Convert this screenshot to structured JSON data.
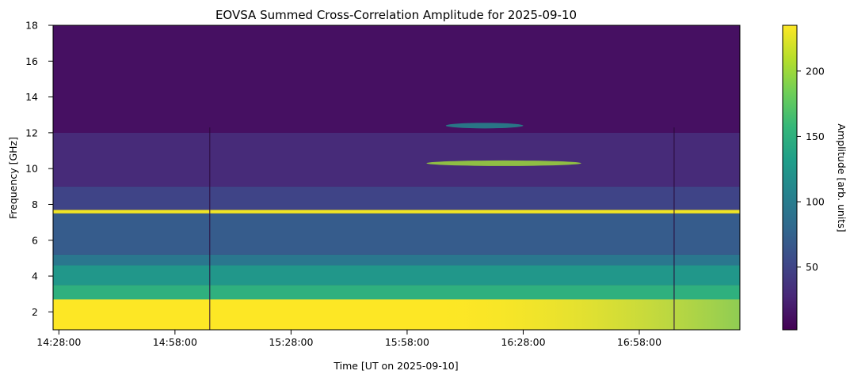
{
  "chart_data": {
    "type": "heatmap",
    "title": "EOVSA Summed Cross-Correlation Amplitude for 2025-09-10",
    "xlabel": "Time [UT on 2025-09-10]",
    "ylabel": "Frequency [GHz]",
    "colorbar_label": "Amplitude [arb. units]",
    "colormap": "viridis",
    "x_range": [
      "14:26:30",
      "17:24:00"
    ],
    "x_ticks": [
      "14:28:00",
      "14:58:00",
      "15:28:00",
      "15:58:00",
      "16:28:00",
      "16:58:00"
    ],
    "y_range": [
      1.0,
      18.0
    ],
    "y_ticks": [
      2,
      4,
      6,
      8,
      10,
      12,
      14,
      16,
      18
    ],
    "color_range": [
      2,
      235
    ],
    "colorbar_ticks": [
      50,
      100,
      150,
      200
    ],
    "grid": false,
    "gaps_ut": [
      "15:07:00",
      "17:07:00"
    ],
    "bands": [
      {
        "freq_from": 1.0,
        "freq_to": 2.7,
        "amplitude": 235,
        "note": "saturated low band"
      },
      {
        "freq_from": 2.7,
        "freq_to": 3.5,
        "amplitude": 150
      },
      {
        "freq_from": 3.5,
        "freq_to": 4.6,
        "amplitude": 125
      },
      {
        "freq_from": 4.6,
        "freq_to": 5.2,
        "amplitude": 95
      },
      {
        "freq_from": 5.2,
        "freq_to": 7.5,
        "amplitude": 70
      },
      {
        "freq_from": 7.5,
        "freq_to": 7.7,
        "amplitude": 230,
        "note": "bright line"
      },
      {
        "freq_from": 7.7,
        "freq_to": 9.0,
        "amplitude": 50
      },
      {
        "freq_from": 9.0,
        "freq_to": 12.0,
        "amplitude": 30
      },
      {
        "freq_from": 12.0,
        "freq_to": 18.0,
        "amplitude": 12
      }
    ],
    "features": [
      {
        "t_from": "16:08:00",
        "t_to": "16:28:00",
        "freq": 12.4,
        "amplitude": 110
      },
      {
        "t_from": "16:03:00",
        "t_to": "16:43:00",
        "freq": 10.3,
        "amplitude": 200
      }
    ]
  },
  "colors": {
    "viridis": [
      "#440154",
      "#482878",
      "#3e4989",
      "#31688e",
      "#26828e",
      "#1f9e89",
      "#35b779",
      "#6ece58",
      "#b5de2b",
      "#fde725"
    ]
  }
}
